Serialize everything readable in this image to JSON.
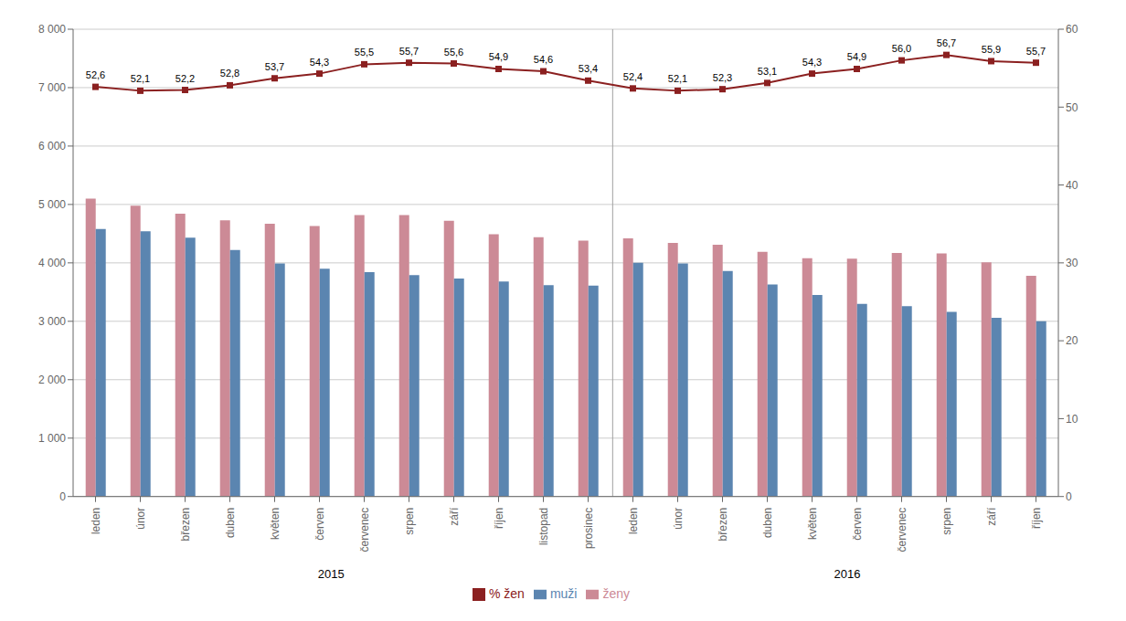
{
  "chart_data": {
    "type": "bar",
    "categories": [
      "leden",
      "únor",
      "březen",
      "duben",
      "květen",
      "červen",
      "červenec",
      "srpen",
      "září",
      "říjen",
      "listopad",
      "prosinec",
      "leden",
      "únor",
      "březen",
      "duben",
      "květen",
      "červen",
      "červenec",
      "srpen",
      "září",
      "říjen"
    ],
    "series": [
      {
        "name": "ženy",
        "color": "#cc8a96",
        "values": [
          5100,
          4980,
          4840,
          4730,
          4670,
          4630,
          4820,
          4820,
          4720,
          4490,
          4440,
          4380,
          4420,
          4340,
          4310,
          4190,
          4080,
          4070,
          4170,
          4160,
          4010,
          3780
        ]
      },
      {
        "name": "muži",
        "color": "#5b85b0",
        "values": [
          4580,
          4540,
          4430,
          4220,
          3990,
          3900,
          3840,
          3790,
          3730,
          3680,
          3620,
          3610,
          4000,
          3990,
          3860,
          3630,
          3450,
          3300,
          3260,
          3160,
          3060,
          3000
        ]
      },
      {
        "name": "% žen",
        "type": "line",
        "axis": "y2",
        "color": "#8b2020",
        "marker": "square",
        "data_labels": true,
        "values": [
          52.6,
          52.1,
          52.2,
          52.8,
          53.7,
          54.3,
          55.5,
          55.7,
          55.6,
          54.9,
          54.6,
          53.4,
          52.4,
          52.1,
          52.3,
          53.1,
          54.3,
          54.9,
          56.0,
          56.7,
          55.9,
          55.7
        ],
        "value_labels": [
          "52,6",
          "52,1",
          "52,2",
          "52,8",
          "53,7",
          "54,3",
          "55,5",
          "55,7",
          "55,6",
          "54,9",
          "54,6",
          "53,4",
          "52,4",
          "52,1",
          "52,3",
          "53,1",
          "54,3",
          "54,9",
          "56,0",
          "56,7",
          "55,9",
          "55,7"
        ]
      }
    ],
    "ylim": [
      0,
      8000
    ],
    "yticks": [
      0,
      {
        "value": 1000,
        "label": "1 000"
      },
      {
        "value": 2000,
        "label": "2 000"
      },
      {
        "value": 3000,
        "label": "3 000"
      },
      {
        "value": 4000,
        "label": "4 000"
      },
      {
        "value": 5000,
        "label": "5 000"
      },
      {
        "value": 6000,
        "label": "6 000"
      },
      {
        "value": 7000,
        "label": "7 000"
      },
      {
        "value": 8000,
        "label": "8 000"
      }
    ],
    "y2lim": [
      0,
      60
    ],
    "y2ticks": [
      0,
      10,
      20,
      30,
      40,
      50,
      60
    ],
    "grid": "y",
    "legend": "bottom",
    "annotations": [
      {
        "text": "2015",
        "x": 5.5
      },
      {
        "text": "2016",
        "x": 16.5
      },
      {
        "type": "vline",
        "x": 11.5
      }
    ]
  }
}
